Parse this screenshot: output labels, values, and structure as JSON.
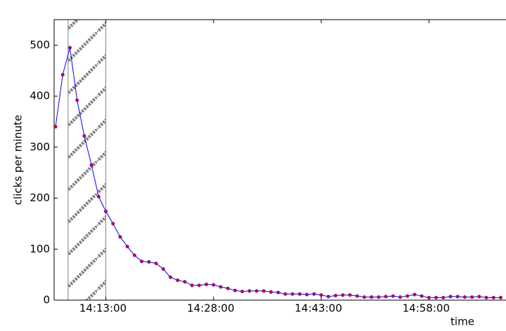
{
  "chart_data": {
    "type": "line",
    "ylabel": "clicks per minute",
    "xlabel": "time",
    "x": [
      "14:06:00",
      "14:07:00",
      "14:08:00",
      "14:09:00",
      "14:10:00",
      "14:11:00",
      "14:12:00",
      "14:13:00",
      "14:14:00",
      "14:15:00",
      "14:16:00",
      "14:17:00",
      "14:18:00",
      "14:19:00",
      "14:20:00",
      "14:21:00",
      "14:22:00",
      "14:23:00",
      "14:24:00",
      "14:25:00",
      "14:26:00",
      "14:27:00",
      "14:28:00",
      "14:29:00",
      "14:30:00",
      "14:31:00",
      "14:32:00",
      "14:33:00",
      "14:34:00",
      "14:35:00",
      "14:36:00",
      "14:37:00",
      "14:38:00",
      "14:39:00",
      "14:40:00",
      "14:41:00",
      "14:42:00",
      "14:43:00",
      "14:44:00",
      "14:45:00",
      "14:46:00",
      "14:47:00",
      "14:48:00",
      "14:49:00",
      "14:50:00",
      "14:51:00",
      "14:52:00",
      "14:53:00",
      "14:54:00",
      "14:55:00",
      "14:56:00",
      "14:57:00",
      "14:58:00",
      "14:59:00",
      "15:00:00",
      "15:01:00",
      "15:02:00",
      "15:03:00",
      "15:04:00",
      "15:05:00",
      "15:06:00",
      "15:07:00",
      "15:08:00"
    ],
    "series": [
      {
        "color": "#0000ff",
        "marker_color": "#cc0033",
        "values": [
          340,
          442,
          495,
          392,
          322,
          265,
          203,
          174,
          150,
          124,
          105,
          88,
          76,
          75,
          72,
          61,
          45,
          39,
          36,
          29,
          29,
          31,
          30,
          26,
          23,
          19,
          17,
          18,
          18,
          18,
          16,
          15,
          12,
          12,
          12,
          11,
          12,
          10,
          7,
          9,
          10,
          10,
          8,
          6,
          6,
          6,
          7,
          8,
          6,
          8,
          11,
          8,
          5,
          5,
          5,
          7,
          7,
          6,
          6,
          7,
          5,
          5,
          5
        ]
      }
    ],
    "span": [
      "14:07:45",
      "14:13:00"
    ],
    "span_color": "#808080",
    "xlim": [
      "14:05:48",
      "15:08:50"
    ],
    "xticks": [
      "14:13:00",
      "14:28:00",
      "14:43:00",
      "14:58:00"
    ],
    "ylim": [
      0,
      550
    ],
    "yticks": [
      0,
      100,
      200,
      300,
      400,
      500
    ]
  }
}
